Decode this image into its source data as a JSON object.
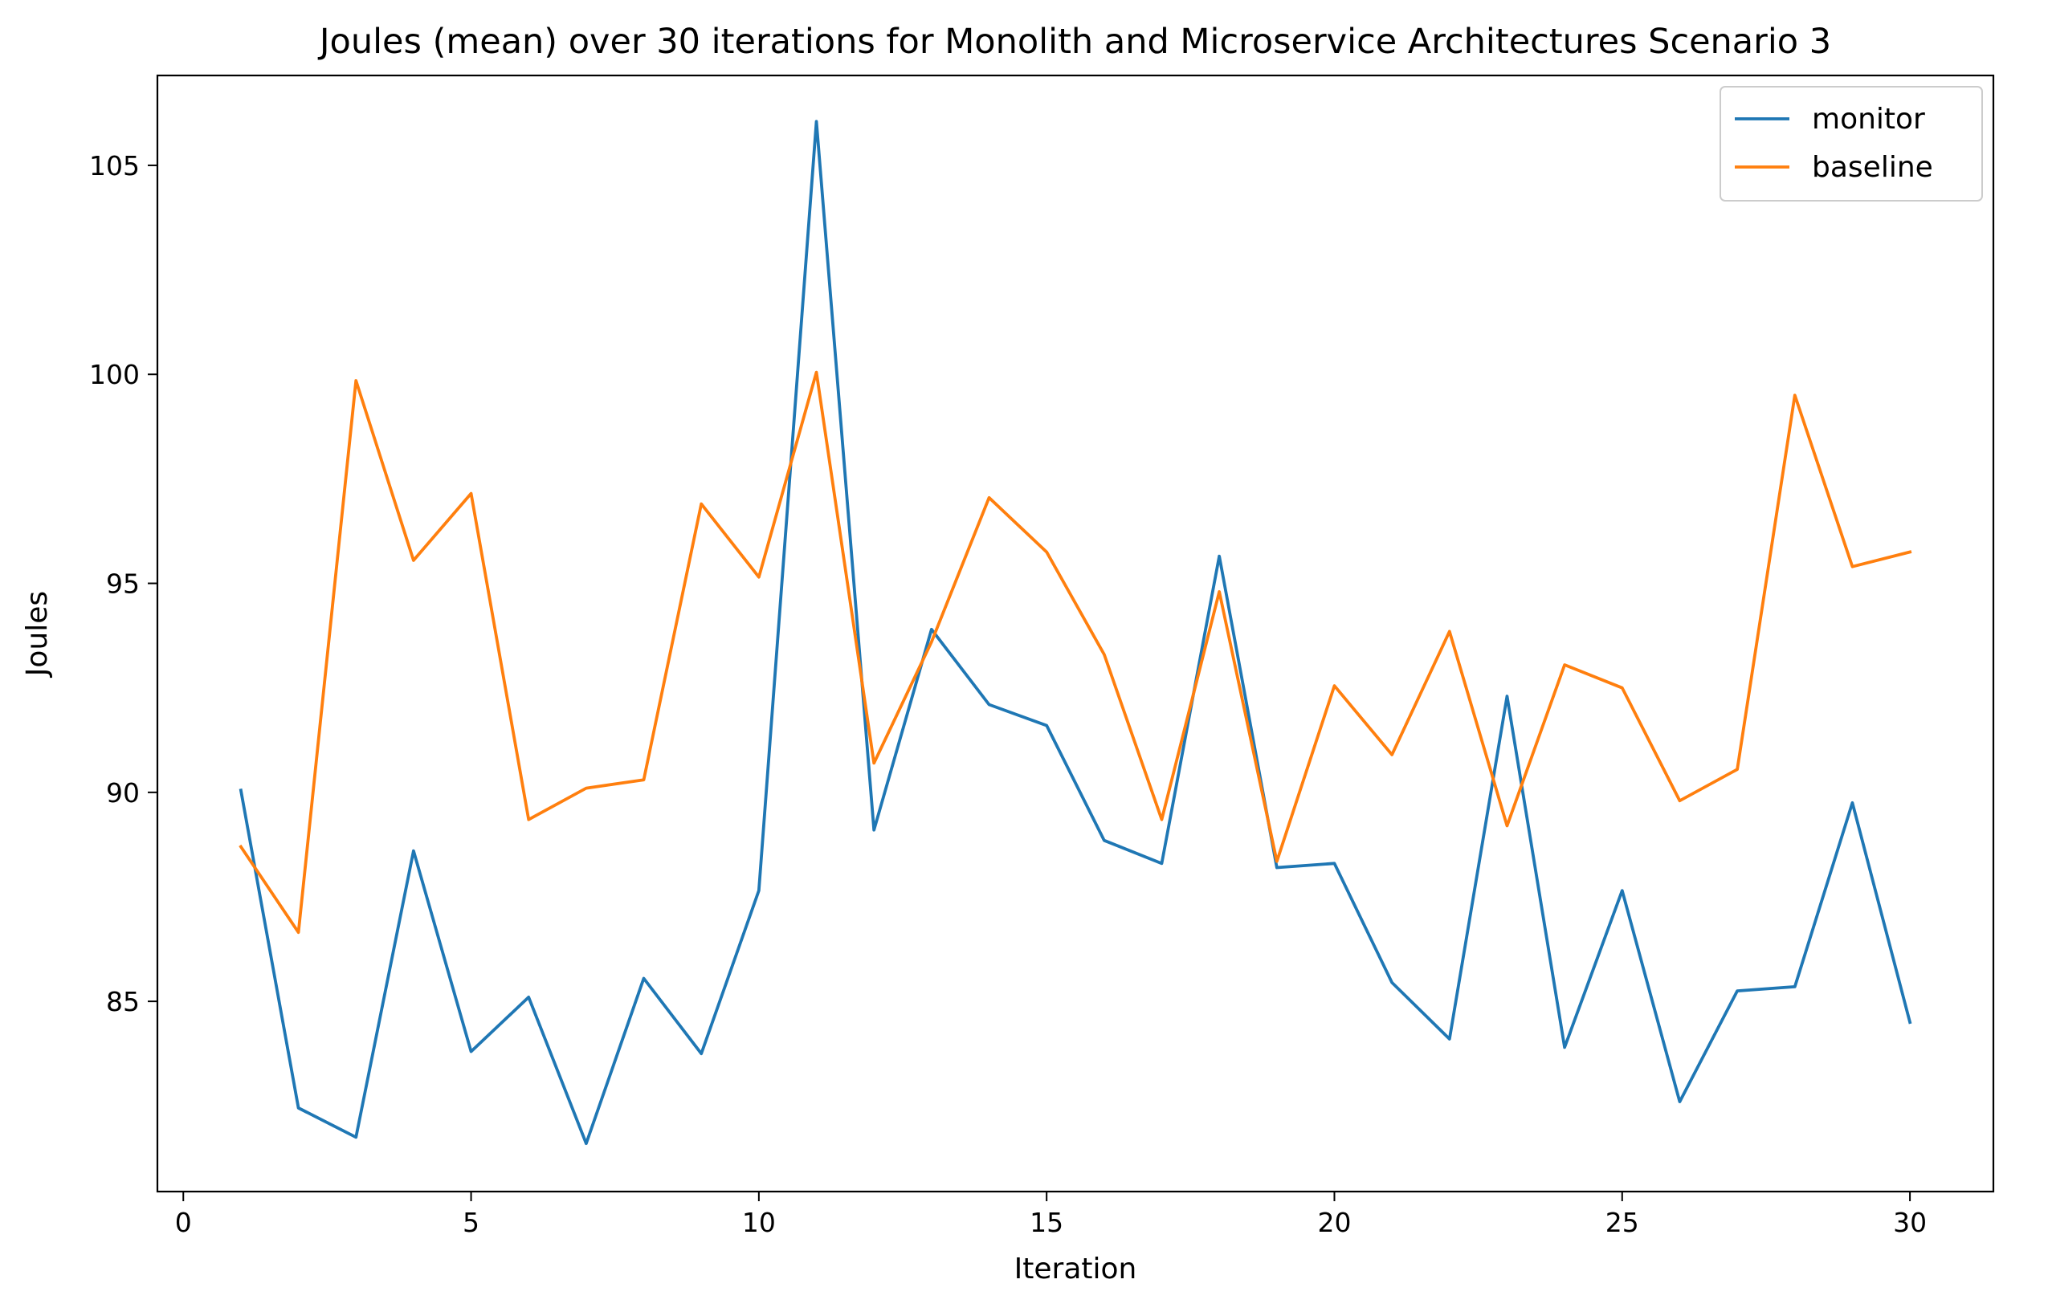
{
  "chart_data": {
    "type": "line",
    "title": "Joules (mean) over 30 iterations for Monolith and Microservice Architectures Scenario 3",
    "xlabel": "Iteration",
    "ylabel": "Joules",
    "xlim": [
      -0.45,
      31.45
    ],
    "ylim": [
      80.45,
      107.15
    ],
    "xticks": [
      0,
      5,
      10,
      15,
      20,
      25,
      30
    ],
    "yticks": [
      85,
      90,
      95,
      100,
      105
    ],
    "grid": false,
    "legend_position": "top-right",
    "x": [
      1,
      2,
      3,
      4,
      5,
      6,
      7,
      8,
      9,
      10,
      11,
      12,
      13,
      14,
      15,
      16,
      17,
      18,
      19,
      20,
      21,
      22,
      23,
      24,
      25,
      26,
      27,
      28,
      29,
      30
    ],
    "series": [
      {
        "name": "monitor",
        "color": "#1f77b4",
        "values": [
          90.05,
          82.45,
          81.75,
          88.6,
          83.8,
          85.1,
          81.6,
          85.55,
          83.75,
          87.65,
          106.05,
          89.1,
          93.9,
          92.1,
          91.6,
          88.85,
          88.3,
          95.65,
          88.2,
          88.3,
          85.45,
          84.1,
          92.3,
          83.9,
          87.65,
          82.6,
          85.25,
          85.35,
          89.75,
          84.5
        ]
      },
      {
        "name": "baseline",
        "color": "#ff7f0e",
        "values": [
          88.7,
          86.65,
          99.85,
          95.55,
          97.15,
          89.35,
          90.1,
          90.3,
          96.9,
          95.15,
          100.05,
          90.7,
          93.6,
          97.05,
          95.75,
          93.3,
          89.35,
          94.8,
          88.35,
          92.55,
          90.9,
          93.85,
          89.2,
          93.05,
          92.5,
          89.8,
          90.55,
          99.5,
          95.4,
          95.75
        ]
      }
    ]
  }
}
